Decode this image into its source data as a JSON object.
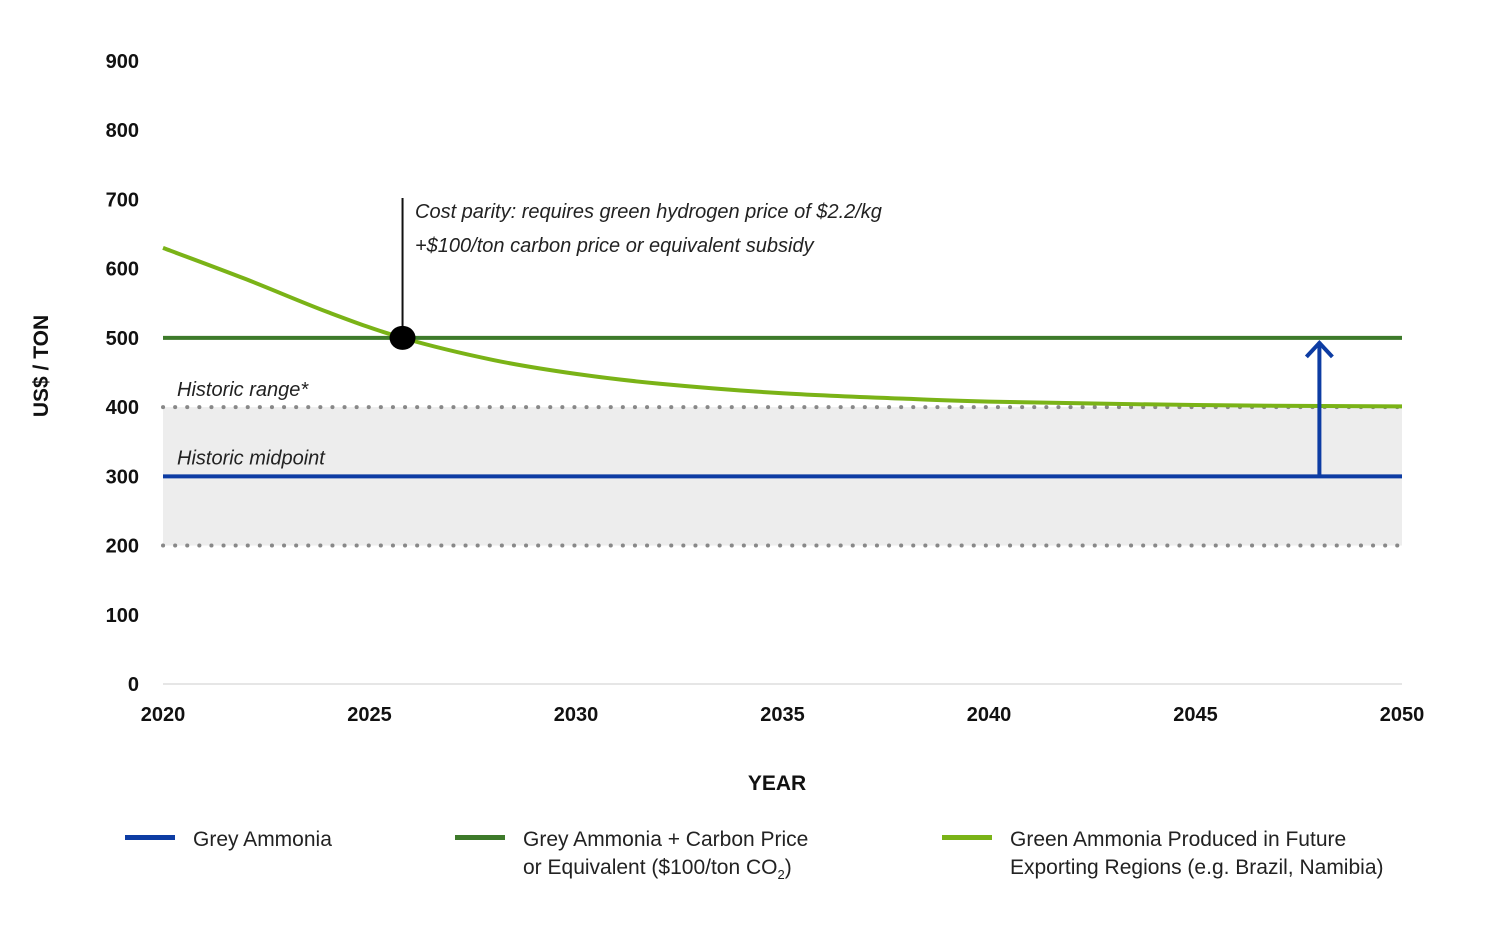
{
  "chart_data": {
    "type": "line",
    "xlabel": "YEAR",
    "ylabel": "US$ / TON",
    "xlim": [
      2020,
      2050
    ],
    "ylim": [
      0,
      900
    ],
    "x_ticks": [
      "2020",
      "2025",
      "2030",
      "2035",
      "2040",
      "2045",
      "2050"
    ],
    "y_ticks": [
      "0",
      "100",
      "200",
      "300",
      "400",
      "500",
      "600",
      "700",
      "800",
      "900"
    ],
    "grid": false,
    "series": [
      {
        "name": "Grey Ammonia",
        "color": "#0d3ca3",
        "x": [
          2020,
          2050
        ],
        "y": [
          300,
          300
        ]
      },
      {
        "name": "Grey Ammonia + Carbon Price or Equivalent ($100/ton CO2)",
        "color": "#3d7a2a",
        "x": [
          2020,
          2050
        ],
        "y": [
          500,
          500
        ]
      },
      {
        "name": "Green Ammonia Produced in Future Exporting Regions (e.g. Brazil, Namibia)",
        "color": "#7ab317",
        "x": [
          2020,
          2022,
          2024,
          2025.8,
          2028,
          2030,
          2032,
          2035,
          2038,
          2040,
          2045,
          2050
        ],
        "y": [
          630,
          585,
          537,
          500,
          468,
          448,
          434,
          420,
          412,
          408,
          403,
          401
        ]
      }
    ],
    "historic_range": {
      "label": "Historic range*",
      "low": 200,
      "high": 400,
      "fill": "#ededed",
      "line_color": "#888888"
    },
    "historic_midpoint": {
      "label": "Historic midpoint",
      "value": 300
    },
    "cost_parity": {
      "x": 2025.8,
      "y": 500,
      "label_line1": "Cost parity: requires green hydrogen price of $2.2/kg",
      "label_line2": "+$100/ton carbon price or equivalent subsidy"
    },
    "arrow": {
      "x": 2048,
      "from": 300,
      "to": 500,
      "color": "#0d3ca3"
    }
  },
  "legend": {
    "items": [
      {
        "color": "#0d3ca3",
        "line1": "Grey Ammonia",
        "line2": "",
        "line2_sub": "",
        "line2_end": ""
      },
      {
        "color": "#3d7a2a",
        "line1": "Grey Ammonia + Carbon Price",
        "line2": "or Equivalent ($100/ton CO",
        "line2_sub": "2",
        "line2_end": ")"
      },
      {
        "color": "#7ab317",
        "line1": "Green Ammonia Produced in Future",
        "line2": "Exporting Regions (e.g. Brazil, Namibia)",
        "line2_sub": "",
        "line2_end": ""
      }
    ]
  }
}
